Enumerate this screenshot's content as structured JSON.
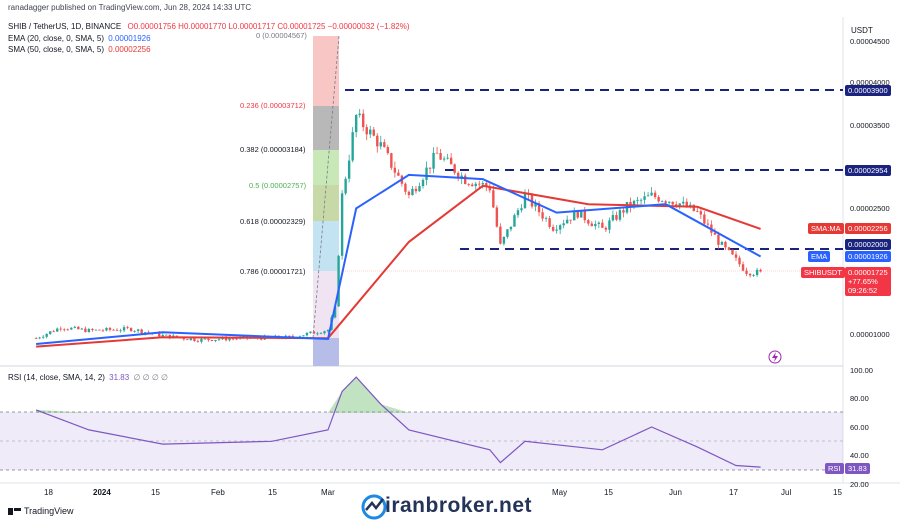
{
  "header": {
    "publisher": "ranadagger published on TradingView.com, Jun 28, 2024 14:33 UTC"
  },
  "legend": {
    "symbol": "SHIB / TetherUS, 1D, BINANCE",
    "ohlc": "O0.00001756 H0.00001770 L0.00001717 C0.00001725 −0.00000032 (−1.82%)",
    "ema_label": "EMA (20, close, 0, SMA, 5)",
    "ema_value": "0.00001926",
    "sma_label": "SMA (50, close, 0, SMA, 5)",
    "sma_value": "0.00002256",
    "rsi_label": "RSI (14, close, SMA, 14, 2)",
    "rsi_value": "31.83",
    "rsi_extra": "∅ ∅ ∅ ∅"
  },
  "price_axis": {
    "currency": "USDT",
    "ticks": [
      "0.00004500",
      "0.00004000",
      "0.00003500",
      "0.00002500",
      "0.00001000"
    ]
  },
  "badges": {
    "level_3900": "0.00003900",
    "level_2954": "0.00002954",
    "sma_tag": "SMA:MA",
    "sma_val": "0.00002256",
    "level_2000": "0.00002000",
    "ema_tag": "EMA",
    "ema_val": "0.00001926",
    "symbol_tag": "SHIBUSDT",
    "last_price": "0.00001725",
    "change": "+77.65%",
    "countdown": "09:26:52"
  },
  "fib": {
    "f0": "0 (0.00004567)",
    "f236": "0.236 (0.00003712)",
    "f382": "0.382 (0.00003184)",
    "f5": "0.5 (0.00002757)",
    "f618": "0.618 (0.00002329)",
    "f786": "0.786 (0.00001721)"
  },
  "rsi_axis": {
    "ticks": [
      "100.00",
      "80.00",
      "60.00",
      "40.00",
      "20.00"
    ],
    "tag": "RSI",
    "value": "31.83"
  },
  "time_axis": {
    "ticks": [
      "18",
      "2024",
      "15",
      "Feb",
      "15",
      "Mar",
      "May",
      "15",
      "Jun",
      "17",
      "Jul",
      "15"
    ]
  },
  "footer": {
    "brand": "iranbroker.net",
    "tradingview": "TradingView"
  },
  "colors": {
    "up": "#26a69a",
    "down": "#ef5350",
    "ema": "#2962ff",
    "sma": "#e53935",
    "rsi": "#7e57c2",
    "level": "#1a237e"
  },
  "chart_data": {
    "type": "candlestick",
    "title": "SHIB / TetherUS, 1D, BINANCE",
    "ylim": [
      5e-06,
      4.6e-05
    ],
    "horizontal_levels": [
      3.9e-05,
      2.954e-05,
      2e-05
    ],
    "fib_levels": [
      {
        "ratio": 0,
        "price": 4.567e-05
      },
      {
        "ratio": 0.236,
        "price": 3.712e-05
      },
      {
        "ratio": 0.382,
        "price": 3.184e-05
      },
      {
        "ratio": 0.5,
        "price": 2.757e-05
      },
      {
        "ratio": 0.618,
        "price": 2.329e-05
      },
      {
        "ratio": 0.786,
        "price": 1.721e-05
      }
    ],
    "price_path": [
      [
        "2023-12-05",
        9.5e-06
      ],
      [
        "2023-12-12",
        1.08e-05
      ],
      [
        "2023-12-20",
        1.04e-05
      ],
      [
        "2024-01-01",
        1.06e-05
      ],
      [
        "2024-01-10",
        9.8e-06
      ],
      [
        "2024-01-20",
        9.3e-06
      ],
      [
        "2024-02-01",
        9.5e-06
      ],
      [
        "2024-02-15",
        9.6e-06
      ],
      [
        "2024-02-26",
        1.05e-05
      ],
      [
        "2024-02-28",
        1.3e-05
      ],
      [
        "2024-03-01",
        2.65e-05
      ],
      [
        "2024-03-05",
        3.6e-05
      ],
      [
        "2024-03-12",
        3.25e-05
      ],
      [
        "2024-03-20",
        2.65e-05
      ],
      [
        "2024-03-28",
        3.15e-05
      ],
      [
        "2024-04-05",
        2.85e-05
      ],
      [
        "2024-04-12",
        2.75e-05
      ],
      [
        "2024-04-15",
        2.05e-05
      ],
      [
        "2024-04-22",
        2.65e-05
      ],
      [
        "2024-04-30",
        2.28e-05
      ],
      [
        "2024-05-07",
        2.45e-05
      ],
      [
        "2024-05-14",
        2.25e-05
      ],
      [
        "2024-05-21",
        2.52e-05
      ],
      [
        "2024-05-28",
        2.65e-05
      ],
      [
        "2024-06-04",
        2.58e-05
      ],
      [
        "2024-06-10",
        2.45e-05
      ],
      [
        "2024-06-17",
        2.05e-05
      ],
      [
        "2024-06-24",
        1.75e-05
      ],
      [
        "2024-06-28",
        1.725e-05
      ]
    ],
    "ema20_path": [
      [
        "2023-12-05",
        8.8e-06
      ],
      [
        "2024-01-10",
        1.02e-05
      ],
      [
        "2024-02-26",
        9.4e-06
      ],
      [
        "2024-03-05",
        2.5e-05
      ],
      [
        "2024-03-20",
        2.9e-05
      ],
      [
        "2024-04-10",
        2.85e-05
      ],
      [
        "2024-05-01",
        2.45e-05
      ],
      [
        "2024-06-01",
        2.55e-05
      ],
      [
        "2024-06-28",
        1.926e-05
      ]
    ],
    "sma50_path": [
      [
        "2023-12-05",
        8.5e-06
      ],
      [
        "2024-01-10",
        9.6e-06
      ],
      [
        "2024-02-26",
        9.5e-06
      ],
      [
        "2024-03-20",
        2.1e-05
      ],
      [
        "2024-04-10",
        2.77e-05
      ],
      [
        "2024-05-10",
        2.55e-05
      ],
      [
        "2024-06-10",
        2.52e-05
      ],
      [
        "2024-06-28",
        2.256e-05
      ]
    ],
    "rsi_path": [
      [
        "2023-12-05",
        72
      ],
      [
        "2023-12-20",
        58
      ],
      [
        "2024-01-10",
        48
      ],
      [
        "2024-02-10",
        50
      ],
      [
        "2024-02-26",
        58
      ],
      [
        "2024-03-01",
        85
      ],
      [
        "2024-03-05",
        95
      ],
      [
        "2024-03-12",
        76
      ],
      [
        "2024-03-20",
        58
      ],
      [
        "2024-04-12",
        44
      ],
      [
        "2024-04-15",
        35
      ],
      [
        "2024-04-22",
        50
      ],
      [
        "2024-05-14",
        44
      ],
      [
        "2024-05-28",
        60
      ],
      [
        "2024-06-10",
        46
      ],
      [
        "2024-06-21",
        33
      ],
      [
        "2024-06-28",
        31.83
      ]
    ],
    "rsi_levels": [
      70,
      50,
      30
    ]
  }
}
